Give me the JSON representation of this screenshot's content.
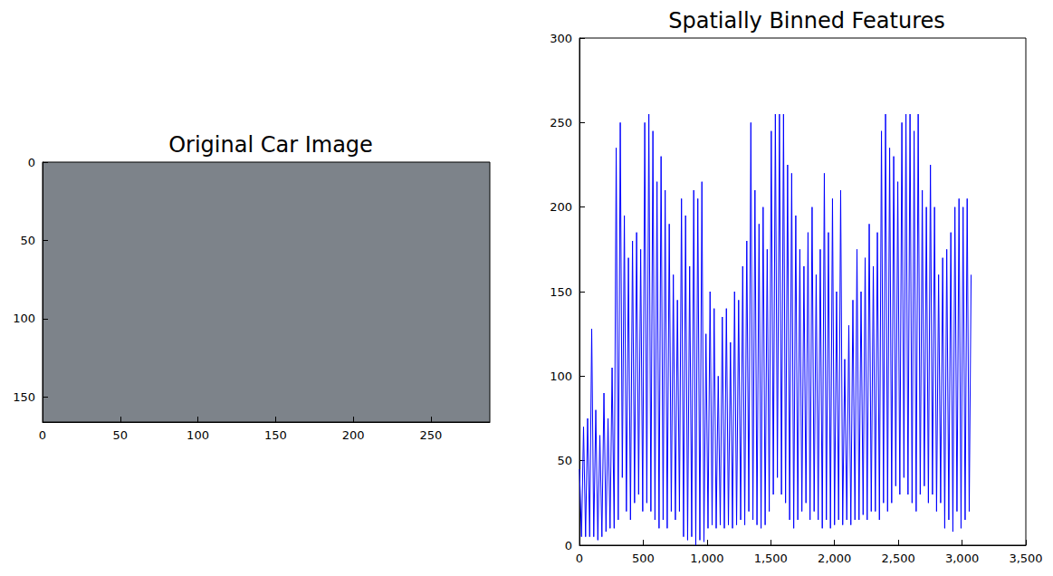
{
  "chart_data": [
    {
      "type": "image",
      "title": "Original Car Image",
      "xlim": [
        0,
        288
      ],
      "ylim": [
        166,
        0
      ],
      "xticks": [
        0,
        50,
        100,
        150,
        200,
        250
      ],
      "yticks": [
        0,
        50,
        100,
        150
      ]
    },
    {
      "type": "line",
      "title": "Spatially Binned Features",
      "color": "#0000ff",
      "x": [
        0,
        16,
        32,
        48,
        64,
        80,
        96,
        112,
        128,
        144,
        160,
        176,
        192,
        208,
        224,
        240,
        256,
        272,
        288,
        304,
        320,
        336,
        352,
        368,
        384,
        400,
        416,
        432,
        448,
        464,
        480,
        496,
        512,
        528,
        544,
        560,
        576,
        592,
        608,
        624,
        640,
        656,
        672,
        688,
        704,
        720,
        736,
        752,
        768,
        784,
        800,
        816,
        832,
        848,
        864,
        880,
        896,
        912,
        928,
        944,
        960,
        976,
        992,
        1008,
        1024,
        1040,
        1056,
        1072,
        1088,
        1104,
        1120,
        1136,
        1152,
        1168,
        1184,
        1200,
        1216,
        1232,
        1248,
        1264,
        1280,
        1296,
        1312,
        1328,
        1344,
        1360,
        1376,
        1392,
        1408,
        1424,
        1440,
        1456,
        1472,
        1488,
        1504,
        1520,
        1536,
        1552,
        1568,
        1584,
        1600,
        1616,
        1632,
        1648,
        1664,
        1680,
        1696,
        1712,
        1728,
        1744,
        1760,
        1776,
        1792,
        1808,
        1824,
        1840,
        1856,
        1872,
        1888,
        1904,
        1920,
        1936,
        1952,
        1968,
        1984,
        2000,
        2016,
        2032,
        2048,
        2064,
        2080,
        2096,
        2112,
        2128,
        2144,
        2160,
        2176,
        2192,
        2208,
        2224,
        2240,
        2256,
        2272,
        2288,
        2304,
        2320,
        2336,
        2352,
        2368,
        2384,
        2400,
        2416,
        2432,
        2448,
        2464,
        2480,
        2496,
        2512,
        2528,
        2544,
        2560,
        2576,
        2592,
        2608,
        2624,
        2640,
        2656,
        2672,
        2688,
        2704,
        2720,
        2736,
        2752,
        2768,
        2784,
        2800,
        2816,
        2832,
        2848,
        2864,
        2880,
        2896,
        2912,
        2928,
        2944,
        2960,
        2976,
        2992,
        3008,
        3024,
        3040,
        3056,
        3071
      ],
      "values": [
        45,
        5,
        70,
        5,
        75,
        5,
        128,
        5,
        80,
        3,
        65,
        5,
        90,
        8,
        75,
        10,
        105,
        10,
        235,
        15,
        250,
        40,
        195,
        20,
        170,
        15,
        180,
        25,
        185,
        30,
        175,
        20,
        250,
        25,
        255,
        20,
        245,
        15,
        215,
        10,
        230,
        15,
        210,
        10,
        190,
        20,
        160,
        15,
        145,
        20,
        205,
        5,
        195,
        3,
        165,
        5,
        210,
        0,
        205,
        3,
        215,
        2,
        125,
        10,
        150,
        12,
        140,
        10,
        100,
        12,
        135,
        10,
        140,
        12,
        120,
        10,
        150,
        12,
        145,
        15,
        165,
        12,
        180,
        20,
        250,
        15,
        210,
        12,
        190,
        10,
        200,
        12,
        175,
        20,
        245,
        30,
        255,
        40,
        255,
        30,
        255,
        25,
        225,
        15,
        220,
        10,
        195,
        15,
        175,
        20,
        165,
        25,
        185,
        15,
        200,
        20,
        160,
        15,
        175,
        10,
        220,
        15,
        185,
        10,
        205,
        12,
        150,
        15,
        210,
        12,
        110,
        15,
        130,
        12,
        145,
        15,
        175,
        15,
        150,
        18,
        170,
        15,
        190,
        20,
        165,
        20,
        185,
        15,
        245,
        25,
        255,
        20,
        235,
        25,
        230,
        35,
        215,
        30,
        250,
        40,
        255,
        30,
        255,
        25,
        245,
        20,
        255,
        30,
        210,
        35,
        200,
        25,
        225,
        30,
        200,
        20,
        160,
        25,
        170,
        10,
        175,
        15,
        185,
        8,
        200,
        20,
        205,
        10,
        200,
        15,
        205,
        20,
        160
      ],
      "xlim": [
        0,
        3500
      ],
      "ylim": [
        0,
        300
      ],
      "xticks": [
        0,
        500,
        1000,
        1500,
        2000,
        2500,
        3000,
        3500
      ],
      "yticks": [
        0,
        50,
        100,
        150,
        200,
        250,
        300
      ]
    }
  ]
}
